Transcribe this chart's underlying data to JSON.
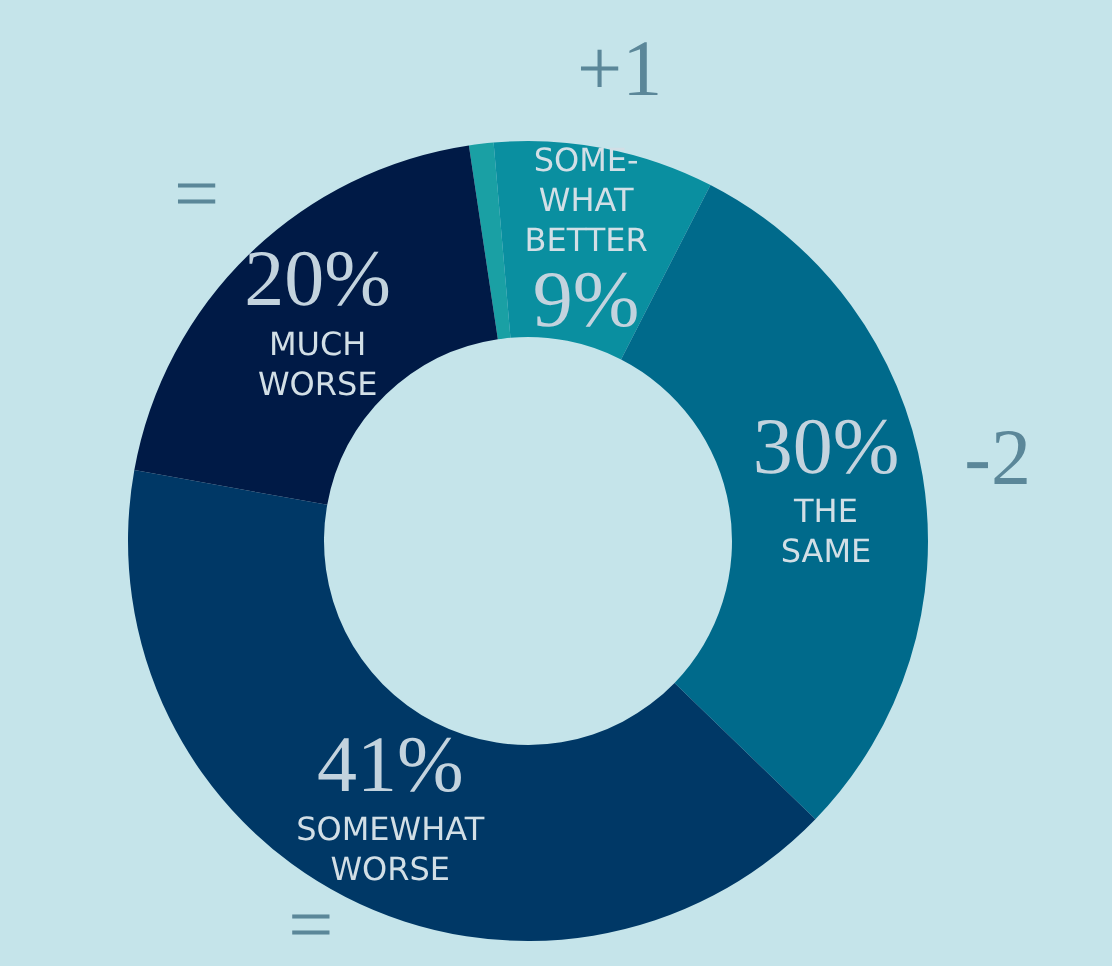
{
  "chart_data": {
    "type": "donut",
    "categories": [
      null,
      "SOME-\nWHAT\nBETTER",
      "THE\nSAME",
      "SOMEWHAT\nWORSE",
      "MUCH\nWORSE"
    ],
    "values": [
      1,
      9,
      30,
      41,
      20
    ],
    "value_labels": [
      null,
      "9%",
      "30%",
      "41%",
      "20%"
    ],
    "colors": [
      "#1aa0a4",
      "#0a8fa0",
      "#006a8b",
      "#003866",
      "#001a46"
    ],
    "annotations": [
      {
        "text": "+1",
        "x": "SOME-\nWHAT\nBETTER"
      },
      {
        "text": "-2",
        "x": "THE\nSAME"
      },
      {
        "text": "=",
        "x": "SOMEWHAT\nWORSE"
      },
      {
        "text": "=",
        "x": "MUCH\nWORSE"
      }
    ],
    "legend": false
  }
}
